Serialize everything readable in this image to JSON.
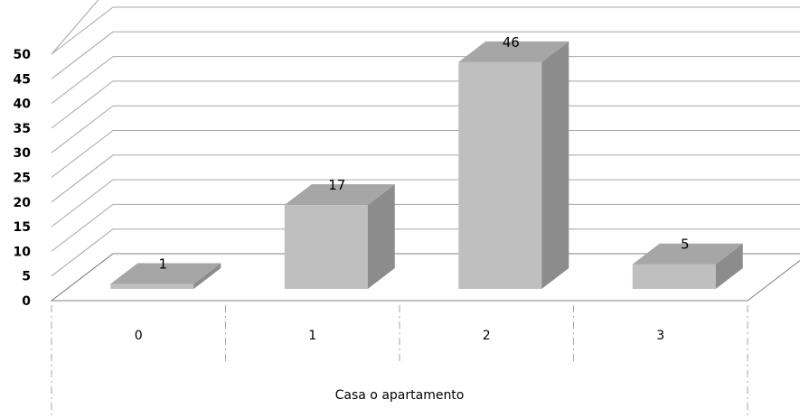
{
  "chart_data": {
    "type": "bar",
    "style": "3d-column",
    "categories": [
      "0",
      "1",
      "2",
      "3"
    ],
    "values": [
      1,
      17,
      46,
      5
    ],
    "data_labels": [
      "1",
      "17",
      "46",
      "5"
    ],
    "title": "",
    "xlabel": "Casa o apartamento",
    "ylabel": "",
    "ylim": [
      0,
      50
    ],
    "yticks": [
      "0",
      "5",
      "10",
      "15",
      "20",
      "25",
      "30",
      "35",
      "40",
      "45",
      "50"
    ],
    "grid": true,
    "legend": "none",
    "colors": {
      "bar_front": "#bfbfbf",
      "bar_top": "#a6a6a6",
      "bar_side": "#8c8c8c",
      "grid": "#a6a6a6",
      "floor": "#bdbdbd"
    }
  }
}
